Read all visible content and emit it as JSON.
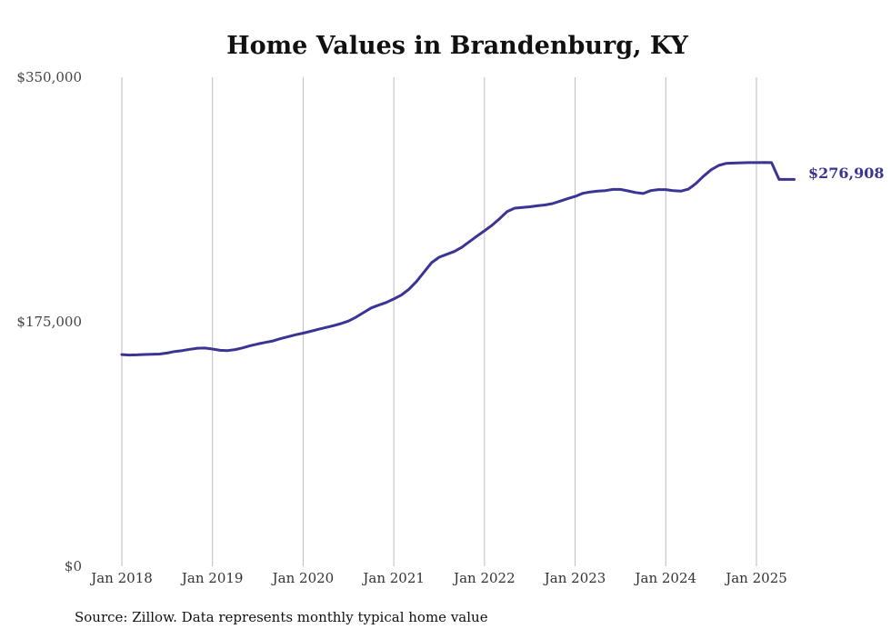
{
  "chart_data": {
    "type": "line",
    "title": "Home Values in Brandenburg, KY",
    "source": "Source: Zillow. Data represents monthly typical home value",
    "xlabel": "",
    "ylabel": "",
    "ylim": [
      0,
      350000
    ],
    "yticks": [
      {
        "value": 0,
        "label": "$0"
      },
      {
        "value": 175000,
        "label": "$175,000"
      },
      {
        "value": 350000,
        "label": "$350,000"
      }
    ],
    "xticks": [
      {
        "value": "2018-01",
        "label": "Jan 2018"
      },
      {
        "value": "2019-01",
        "label": "Jan 2019"
      },
      {
        "value": "2020-01",
        "label": "Jan 2020"
      },
      {
        "value": "2021-01",
        "label": "Jan 2021"
      },
      {
        "value": "2022-01",
        "label": "Jan 2022"
      },
      {
        "value": "2023-01",
        "label": "Jan 2023"
      },
      {
        "value": "2024-01",
        "label": "Jan 2024"
      },
      {
        "value": "2025-01",
        "label": "Jan 2025"
      }
    ],
    "grid": "vertical",
    "line_color": "#3a3494",
    "end_label": "$276,908",
    "series": [
      {
        "x": [
          "2018-01",
          "2018-02",
          "2018-03",
          "2018-04",
          "2018-05",
          "2018-06",
          "2018-07",
          "2018-08",
          "2018-09",
          "2018-10",
          "2018-11",
          "2018-12",
          "2019-01",
          "2019-02",
          "2019-03",
          "2019-04",
          "2019-05",
          "2019-06",
          "2019-07",
          "2019-08",
          "2019-09",
          "2019-10",
          "2019-11",
          "2019-12",
          "2020-01",
          "2020-02",
          "2020-03",
          "2020-04",
          "2020-05",
          "2020-06",
          "2020-07",
          "2020-08",
          "2020-09",
          "2020-10",
          "2020-11",
          "2020-12",
          "2021-01",
          "2021-02",
          "2021-03",
          "2021-04",
          "2021-05",
          "2021-06",
          "2021-07",
          "2021-08",
          "2021-09",
          "2021-10",
          "2021-11",
          "2021-12",
          "2022-01",
          "2022-02",
          "2022-03",
          "2022-04",
          "2022-05",
          "2022-06",
          "2022-07",
          "2022-08",
          "2022-09",
          "2022-10",
          "2022-11",
          "2022-12",
          "2023-01",
          "2023-02",
          "2023-03",
          "2023-04",
          "2023-05",
          "2023-06",
          "2023-07",
          "2023-08",
          "2023-09",
          "2023-10",
          "2023-11",
          "2023-12",
          "2024-01",
          "2024-02",
          "2024-03",
          "2024-04",
          "2024-05",
          "2024-06",
          "2024-07",
          "2024-08",
          "2024-09",
          "2024-10",
          "2024-11",
          "2024-12",
          "2025-01",
          "2025-02",
          "2025-03",
          "2025-04",
          "2025-05",
          "2025-06"
        ],
        "values": [
          151500,
          151200,
          151300,
          151600,
          151700,
          151900,
          152600,
          153700,
          154400,
          155300,
          156100,
          156200,
          155500,
          154600,
          154400,
          155100,
          156300,
          157900,
          159100,
          160200,
          161300,
          162900,
          164300,
          165700,
          166900,
          168200,
          169600,
          170900,
          172200,
          173700,
          175500,
          178300,
          181600,
          184900,
          186900,
          188800,
          191300,
          194100,
          198300,
          203800,
          210600,
          217300,
          221200,
          223300,
          225300,
          228300,
          232300,
          236300,
          240100,
          244100,
          248800,
          253900,
          256300,
          256800,
          257300,
          258000,
          258600,
          259600,
          261300,
          263100,
          264700,
          266900,
          267900,
          268500,
          268900,
          269700,
          269700,
          268700,
          267500,
          266800,
          268900,
          269600,
          269600,
          268800,
          268500,
          269900,
          274000,
          279200,
          283800,
          286900,
          288400,
          288600,
          288800,
          288900,
          288900,
          289000,
          288900,
          276908,
          276908,
          276908
        ]
      }
    ]
  }
}
